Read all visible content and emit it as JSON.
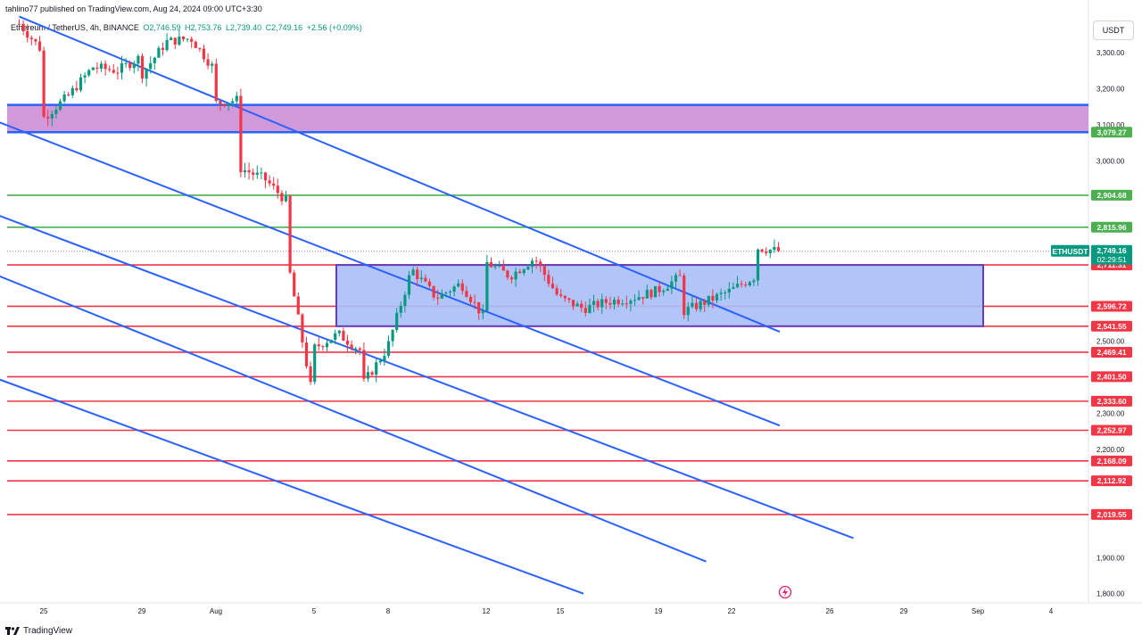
{
  "header": {
    "publisher": "tahlino77 published on TradingView.com, Aug 24, 2024 09:00 UTC+3:30",
    "symbol": "Ethereum / TetherUS, 4h, BINANCE",
    "open": "O2,746.59",
    "high": "H2,753.76",
    "low": "L2,739.40",
    "close": "C2,749.16",
    "change": "+2.56 (+0.09%)"
  },
  "currency": "USDT",
  "footer": {
    "brand": "TradingView"
  },
  "colors": {
    "up": "#089981",
    "down": "#f23645",
    "blue_line": "#2962ff",
    "green_line": "#4caf50",
    "red_line": "#f23645",
    "zone_fill": "#ce93d8",
    "box_fill": "#a9bff8",
    "box_border": "#673ab7"
  },
  "chart_data": {
    "type": "candlestick",
    "title": "Ethereum / TetherUS, 4h, BINANCE",
    "ylim": [
      1770,
      3400
    ],
    "y_ticks": [
      "3,300.00",
      "3,200.00",
      "3,100.00",
      "3,000.00",
      "2,500.00",
      "2,300.00",
      "2,200.00",
      "1,900.00",
      "1,800.00"
    ],
    "x_ticks": [
      "25",
      "29",
      "Aug",
      "5",
      "8",
      "12",
      "15",
      "19",
      "22",
      "26",
      "29",
      "Sep",
      "4"
    ],
    "price_tag": {
      "label": "ETHUSDT",
      "price": "2,749.16",
      "countdown": "02:29:51"
    },
    "horizontal_levels": [
      {
        "value": 2904.68,
        "label": "2,904.68",
        "color": "green"
      },
      {
        "value": 2815.96,
        "label": "2,815.96",
        "color": "green"
      },
      {
        "value": 2711.31,
        "label": "2,711.31",
        "color": "red"
      },
      {
        "value": 2596.72,
        "label": "2,596.72",
        "color": "red"
      },
      {
        "value": 2541.55,
        "label": "2,541.55",
        "color": "red"
      },
      {
        "value": 2469.41,
        "label": "2,469.41",
        "color": "red"
      },
      {
        "value": 2401.5,
        "label": "2,401.50",
        "color": "red"
      },
      {
        "value": 2333.6,
        "label": "2,333.60",
        "color": "red"
      },
      {
        "value": 2252.97,
        "label": "2,252.97",
        "color": "red"
      },
      {
        "value": 2168.09,
        "label": "2,168.09",
        "color": "red"
      },
      {
        "value": 2112.92,
        "label": "2,112.92",
        "color": "red"
      },
      {
        "value": 2019.55,
        "label": "2,019.55",
        "color": "red"
      }
    ],
    "resistance_zone": {
      "top": 3155,
      "bottom": 3079.27,
      "label": "3,079.27"
    },
    "range_box": {
      "top": 2711.31,
      "bottom": 2541.55,
      "from": "Aug 6",
      "to": "Sep 1"
    },
    "channel_lines": [
      {
        "from": [
          "Jul 24",
          3400
        ],
        "to": [
          "Aug 24",
          2526
        ]
      },
      {
        "from": [
          "Jul 22",
          3145
        ],
        "to": [
          "Aug 24",
          2266
        ]
      },
      {
        "from": [
          "Jul 22",
          2885
        ],
        "to": [
          "Aug 27",
          1954
        ]
      },
      {
        "from": [
          "Jul 22",
          2720
        ],
        "to": [
          "Aug 21",
          1889
        ]
      },
      {
        "from": [
          "Jul 22",
          2430
        ],
        "to": [
          "Aug 16",
          1800
        ]
      }
    ],
    "price_path": [
      [
        "Jul 24",
        3380
      ],
      [
        "Jul 25",
        3300
      ],
      [
        "Jul 25",
        3120
      ],
      [
        "Jul 26",
        3180
      ],
      [
        "Jul 27",
        3260
      ],
      [
        "Jul 28",
        3250
      ],
      [
        "Jul 29",
        3290
      ],
      [
        "Jul 29",
        3240
      ],
      [
        "Jul 30",
        3330
      ],
      [
        "Jul 31",
        3340
      ],
      [
        "Aug 1",
        3250
      ],
      [
        "Aug 1",
        3160
      ],
      [
        "Aug 2",
        3170
      ],
      [
        "Aug 2",
        2980
      ],
      [
        "Aug 3",
        2950
      ],
      [
        "Aug 4",
        2880
      ],
      [
        "Aug 4",
        2700
      ],
      [
        "Aug 5",
        2330
      ],
      [
        "Aug 5",
        2480
      ],
      [
        "Aug 6",
        2520
      ],
      [
        "Aug 7",
        2470
      ],
      [
        "Aug 7",
        2380
      ],
      [
        "Aug 8",
        2480
      ],
      [
        "Aug 9",
        2700
      ],
      [
        "Aug 10",
        2620
      ],
      [
        "Aug 11",
        2660
      ],
      [
        "Aug 12",
        2560
      ],
      [
        "Aug 12",
        2720
      ],
      [
        "Aug 13",
        2680
      ],
      [
        "Aug 14",
        2730
      ],
      [
        "Aug 15",
        2620
      ],
      [
        "Aug 16",
        2590
      ],
      [
        "Aug 17",
        2610
      ],
      [
        "Aug 18",
        2620
      ],
      [
        "Aug 19",
        2640
      ],
      [
        "Aug 20",
        2680
      ],
      [
        "Aug 20",
        2580
      ],
      [
        "Aug 21",
        2610
      ],
      [
        "Aug 22",
        2640
      ],
      [
        "Aug 23",
        2680
      ],
      [
        "Aug 23",
        2760
      ],
      [
        "Aug 24",
        2749
      ]
    ]
  }
}
